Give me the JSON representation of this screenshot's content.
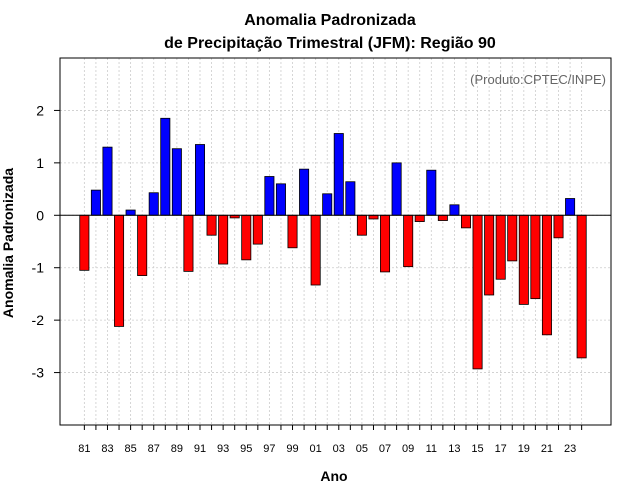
{
  "chart_data": {
    "type": "bar",
    "title": "Anomalia Padronizada",
    "subtitle": "de Precipitação Trimestral (JFM): Região 90",
    "xlabel": "Ano",
    "ylabel": "Anomalia Padronizada",
    "annotation": "(Produto:CPTEC/INPE)",
    "annotation_position": "top-right",
    "ylim": [
      -4,
      3
    ],
    "yticks": [
      2,
      1,
      0,
      -1,
      -2,
      -3
    ],
    "ytick_labels": [
      "2",
      "1",
      "0",
      "-1",
      "-2",
      "-3"
    ],
    "grid": true,
    "categories": [
      "81",
      "82",
      "83",
      "84",
      "85",
      "86",
      "87",
      "88",
      "89",
      "90",
      "91",
      "92",
      "93",
      "94",
      "95",
      "96",
      "97",
      "98",
      "99",
      "00",
      "01",
      "02",
      "03",
      "04",
      "05",
      "06",
      "07",
      "08",
      "09",
      "10",
      "11",
      "12",
      "13",
      "14",
      "15",
      "16",
      "17",
      "18",
      "19",
      "20",
      "21",
      "22",
      "23",
      "24"
    ],
    "xtick_labels": [
      "81",
      "83",
      "85",
      "87",
      "89",
      "91",
      "93",
      "95",
      "97",
      "99",
      "01",
      "03",
      "05",
      "07",
      "09",
      "11",
      "13",
      "15",
      "17",
      "19",
      "21",
      "23"
    ],
    "values": [
      -1.05,
      0.48,
      1.3,
      -2.12,
      0.1,
      -1.15,
      0.43,
      1.85,
      1.27,
      -1.07,
      1.35,
      -0.38,
      -0.93,
      -0.05,
      -0.85,
      -0.55,
      0.74,
      0.6,
      -0.62,
      0.88,
      -1.33,
      0.41,
      1.56,
      0.64,
      -0.38,
      -0.07,
      -1.08,
      1.0,
      -0.98,
      -0.12,
      0.86,
      -0.1,
      0.2,
      -0.24,
      -2.93,
      -1.52,
      -1.22,
      -0.87,
      -1.7,
      -1.59,
      -2.28,
      -0.43,
      0.32,
      -2.72
    ],
    "colors": {
      "positive": "#0000ff",
      "negative": "#ff0000",
      "grid": "#cccccc"
    }
  }
}
